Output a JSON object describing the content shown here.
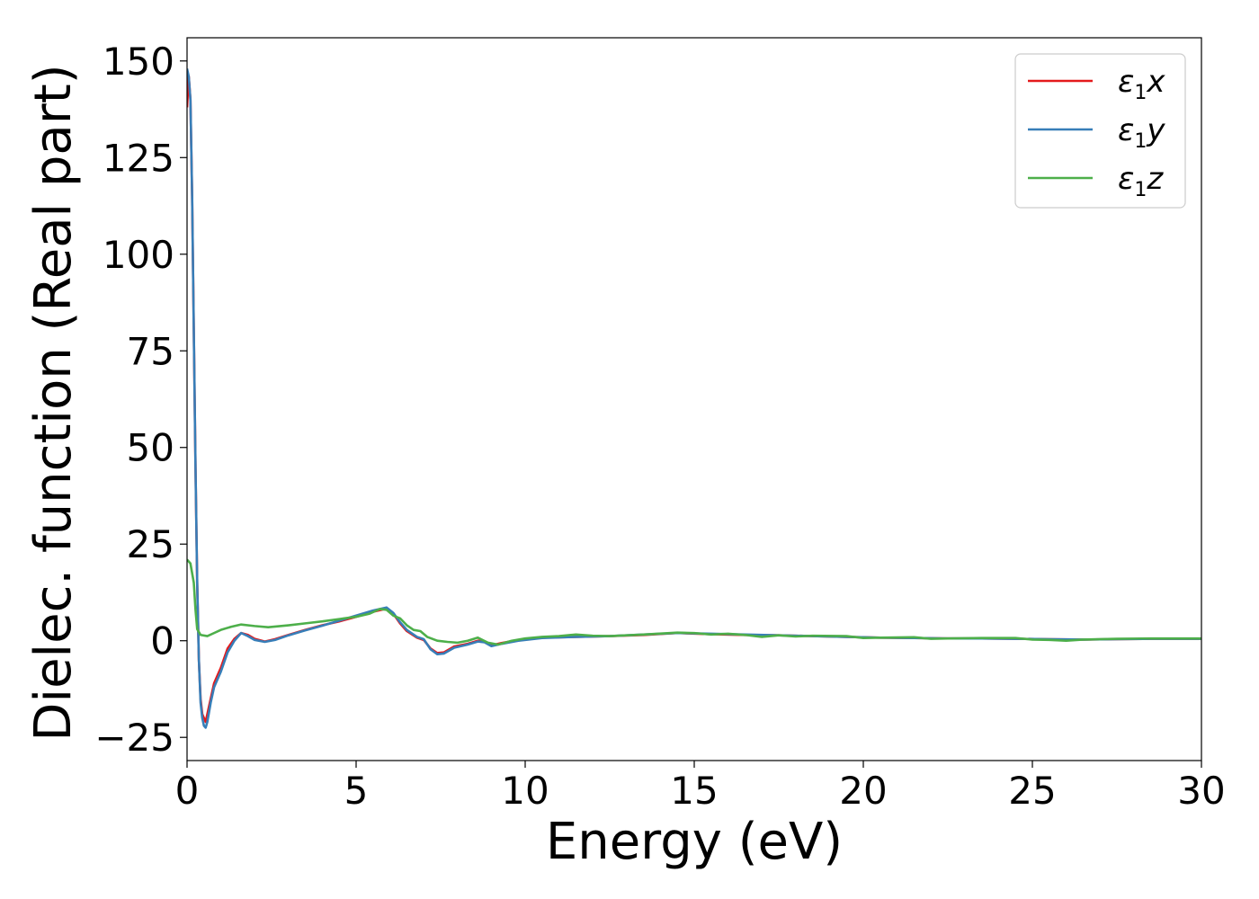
{
  "chart_data": {
    "type": "line",
    "title": "",
    "xlabel": "Energy (eV)",
    "ylabel": "Dielec. function (Real part)",
    "xlim": [
      0,
      30
    ],
    "ylim": [
      -31,
      156
    ],
    "x_ticks": [
      0,
      5,
      10,
      15,
      20,
      25,
      30
    ],
    "y_ticks": [
      -25,
      0,
      25,
      50,
      75,
      100,
      125,
      150
    ],
    "x_tick_labels": [
      "0",
      "5",
      "10",
      "15",
      "20",
      "25",
      "30"
    ],
    "y_tick_labels": [
      "−25",
      "0",
      "25",
      "50",
      "75",
      "100",
      "125",
      "150"
    ],
    "grid": false,
    "legend_position": "top-right",
    "series": [
      {
        "name": "ε",
        "subscript": "1",
        "suffix": "x",
        "color": "#e41a1c",
        "points": [
          [
            0,
            138
          ],
          [
            0.05,
            146
          ],
          [
            0.1,
            140
          ],
          [
            0.15,
            115
          ],
          [
            0.2,
            80
          ],
          [
            0.25,
            45
          ],
          [
            0.3,
            15
          ],
          [
            0.35,
            -5
          ],
          [
            0.4,
            -15
          ],
          [
            0.45,
            -19
          ],
          [
            0.5,
            -20
          ],
          [
            0.55,
            -21
          ],
          [
            0.6,
            -19
          ],
          [
            0.7,
            -15
          ],
          [
            0.8,
            -11
          ],
          [
            1.0,
            -7
          ],
          [
            1.2,
            -2
          ],
          [
            1.4,
            0.5
          ],
          [
            1.6,
            2
          ],
          [
            1.8,
            1.5
          ],
          [
            2.0,
            0.5
          ],
          [
            2.3,
            -0.2
          ],
          [
            2.6,
            0.4
          ],
          [
            3.0,
            1.5
          ],
          [
            3.5,
            2.8
          ],
          [
            4.0,
            4
          ],
          [
            4.5,
            5
          ],
          [
            5.0,
            6.2
          ],
          [
            5.5,
            7.5
          ],
          [
            5.9,
            8.3
          ],
          [
            6.1,
            7
          ],
          [
            6.3,
            4.5
          ],
          [
            6.5,
            2.5
          ],
          [
            6.8,
            0.8
          ],
          [
            7.0,
            0.2
          ],
          [
            7.2,
            -2
          ],
          [
            7.4,
            -3.2
          ],
          [
            7.6,
            -3
          ],
          [
            7.9,
            -1.5
          ],
          [
            8.3,
            -0.8
          ],
          [
            8.6,
            0
          ],
          [
            8.8,
            -0.2
          ],
          [
            9.0,
            -1.2
          ],
          [
            9.3,
            -0.6
          ],
          [
            9.8,
            0.2
          ],
          [
            10.5,
            0.8
          ],
          [
            11.5,
            1
          ],
          [
            12.5,
            1.2
          ],
          [
            13.5,
            1.5
          ],
          [
            14.5,
            2
          ],
          [
            15.5,
            1.7
          ],
          [
            16.5,
            1.5
          ],
          [
            17.5,
            1.4
          ],
          [
            18.5,
            1.2
          ],
          [
            19.5,
            1
          ],
          [
            20.5,
            0.8
          ],
          [
            21.5,
            0.7
          ],
          [
            22.5,
            0.6
          ],
          [
            23.5,
            0.6
          ],
          [
            24.5,
            0.5
          ],
          [
            25.5,
            0.4
          ],
          [
            26.5,
            0.3
          ],
          [
            27.5,
            0.4
          ],
          [
            28.5,
            0.5
          ],
          [
            29.5,
            0.5
          ],
          [
            30,
            0.5
          ]
        ]
      },
      {
        "name": "ε",
        "subscript": "1",
        "suffix": "y",
        "color": "#377eb8",
        "points": [
          [
            0,
            148
          ],
          [
            0.05,
            146
          ],
          [
            0.1,
            140
          ],
          [
            0.15,
            115
          ],
          [
            0.2,
            80
          ],
          [
            0.25,
            45
          ],
          [
            0.3,
            15
          ],
          [
            0.35,
            -5
          ],
          [
            0.4,
            -16
          ],
          [
            0.45,
            -20
          ],
          [
            0.5,
            -22
          ],
          [
            0.55,
            -22.5
          ],
          [
            0.6,
            -21
          ],
          [
            0.7,
            -16
          ],
          [
            0.8,
            -12
          ],
          [
            1.0,
            -8
          ],
          [
            1.2,
            -3
          ],
          [
            1.4,
            0
          ],
          [
            1.6,
            2
          ],
          [
            1.8,
            1.2
          ],
          [
            2.0,
            0.2
          ],
          [
            2.3,
            -0.3
          ],
          [
            2.6,
            0.2
          ],
          [
            3.0,
            1.4
          ],
          [
            3.5,
            2.7
          ],
          [
            4.0,
            3.9
          ],
          [
            4.5,
            5.2
          ],
          [
            5.0,
            6.5
          ],
          [
            5.5,
            7.8
          ],
          [
            5.9,
            8.6
          ],
          [
            6.1,
            7.2
          ],
          [
            6.3,
            4.8
          ],
          [
            6.5,
            2.8
          ],
          [
            6.8,
            1
          ],
          [
            7.0,
            0.4
          ],
          [
            7.2,
            -2.2
          ],
          [
            7.4,
            -3.5
          ],
          [
            7.6,
            -3.3
          ],
          [
            7.9,
            -1.8
          ],
          [
            8.3,
            -1
          ],
          [
            8.6,
            -0.2
          ],
          [
            8.8,
            -0.4
          ],
          [
            9.0,
            -1.4
          ],
          [
            9.3,
            -0.8
          ],
          [
            9.8,
            0
          ],
          [
            10.5,
            0.7
          ],
          [
            11.5,
            1
          ],
          [
            12.5,
            1.2
          ],
          [
            13.5,
            1.6
          ],
          [
            14.5,
            2
          ],
          [
            15.5,
            1.8
          ],
          [
            16.5,
            1.6
          ],
          [
            17.5,
            1.4
          ],
          [
            18.5,
            1.2
          ],
          [
            19.5,
            1
          ],
          [
            20.5,
            0.8
          ],
          [
            21.5,
            0.7
          ],
          [
            22.5,
            0.6
          ],
          [
            23.5,
            0.6
          ],
          [
            24.5,
            0.5
          ],
          [
            25.5,
            0.4
          ],
          [
            26.5,
            0.3
          ],
          [
            27.5,
            0.4
          ],
          [
            28.5,
            0.5
          ],
          [
            29.5,
            0.5
          ],
          [
            30,
            0.5
          ]
        ]
      },
      {
        "name": "ε",
        "subscript": "1",
        "suffix": "z",
        "color": "#4daf4a",
        "points": [
          [
            0,
            21
          ],
          [
            0.1,
            20
          ],
          [
            0.2,
            15
          ],
          [
            0.25,
            8
          ],
          [
            0.3,
            3
          ],
          [
            0.4,
            1.5
          ],
          [
            0.6,
            1.2
          ],
          [
            0.8,
            2
          ],
          [
            1.0,
            2.8
          ],
          [
            1.3,
            3.6
          ],
          [
            1.6,
            4.2
          ],
          [
            2.0,
            3.8
          ],
          [
            2.4,
            3.5
          ],
          [
            3.0,
            4
          ],
          [
            3.5,
            4.5
          ],
          [
            4.0,
            5
          ],
          [
            4.5,
            5.6
          ],
          [
            5.0,
            6.2
          ],
          [
            5.4,
            7
          ],
          [
            5.7,
            8.2
          ],
          [
            5.9,
            8
          ],
          [
            6.1,
            6.5
          ],
          [
            6.3,
            5.8
          ],
          [
            6.5,
            4
          ],
          [
            6.7,
            2.8
          ],
          [
            6.9,
            2.5
          ],
          [
            7.1,
            1
          ],
          [
            7.4,
            0
          ],
          [
            7.7,
            -0.3
          ],
          [
            8.0,
            -0.5
          ],
          [
            8.3,
            0
          ],
          [
            8.6,
            0.8
          ],
          [
            8.9,
            -0.5
          ],
          [
            9.2,
            -1
          ],
          [
            9.6,
            0
          ],
          [
            10.0,
            0.6
          ],
          [
            10.5,
            1
          ],
          [
            11.0,
            1.2
          ],
          [
            11.5,
            1.6
          ],
          [
            12.0,
            1.3
          ],
          [
            12.5,
            1.2
          ],
          [
            13.5,
            1.6
          ],
          [
            14.5,
            2.1
          ],
          [
            15.0,
            2
          ],
          [
            15.5,
            1.6
          ],
          [
            16.0,
            1.8
          ],
          [
            16.5,
            1.5
          ],
          [
            17.0,
            1
          ],
          [
            17.5,
            1.4
          ],
          [
            18.0,
            1.1
          ],
          [
            18.5,
            1.3
          ],
          [
            19.5,
            1.2
          ],
          [
            20.0,
            0.7
          ],
          [
            20.5,
            0.8
          ],
          [
            21.5,
            0.9
          ],
          [
            22.0,
            0.5
          ],
          [
            22.5,
            0.6
          ],
          [
            23.5,
            0.7
          ],
          [
            24.5,
            0.7
          ],
          [
            25.0,
            0.3
          ],
          [
            25.5,
            0.2
          ],
          [
            26.0,
            0
          ],
          [
            26.5,
            0.3
          ],
          [
            27.5,
            0.5
          ],
          [
            28.5,
            0.6
          ],
          [
            29.5,
            0.6
          ],
          [
            30,
            0.6
          ]
        ]
      }
    ]
  }
}
